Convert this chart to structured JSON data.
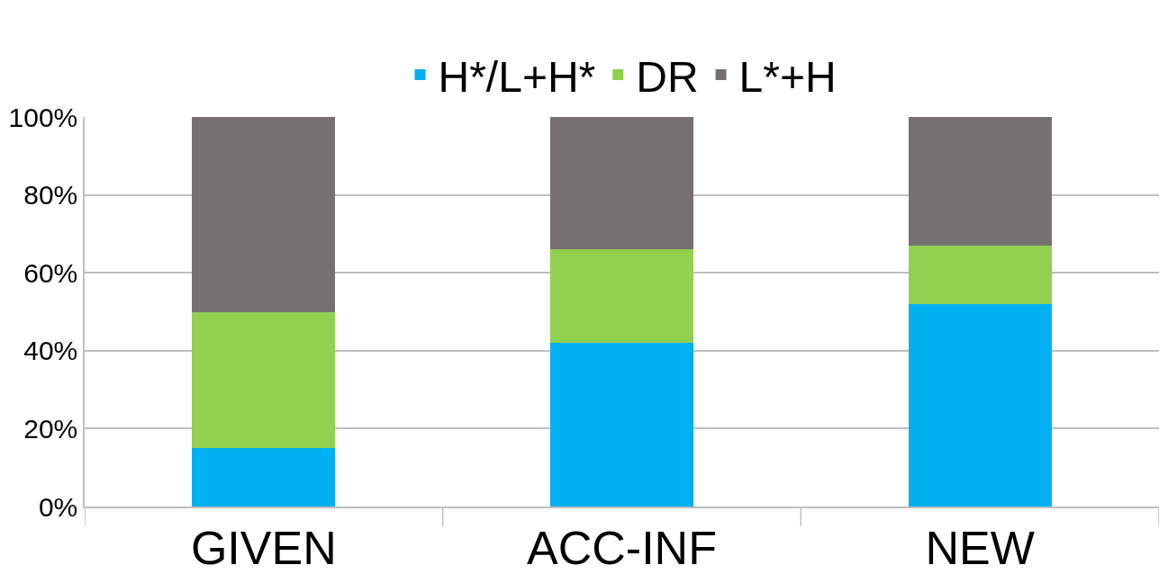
{
  "chart_data": {
    "type": "bar",
    "stacked": true,
    "categories": [
      "GIVEN",
      "ACC-INF",
      "NEW"
    ],
    "series": [
      {
        "name": "H*/L+H*",
        "color": "#00b0f0",
        "values": [
          15,
          42,
          52
        ]
      },
      {
        "name": "DR",
        "color": "#92d050",
        "values": [
          35,
          24,
          15
        ]
      },
      {
        "name": "L*+H",
        "color": "#767171",
        "values": [
          50,
          34,
          33
        ]
      }
    ],
    "ylim": [
      0,
      100
    ],
    "yticks": [
      {
        "value": 0,
        "label": "0%"
      },
      {
        "value": 20,
        "label": "20%"
      },
      {
        "value": 40,
        "label": "40%"
      },
      {
        "value": 60,
        "label": "60%"
      },
      {
        "value": 80,
        "label": "80%"
      },
      {
        "value": 100,
        "label": "100%"
      }
    ],
    "grid": "y",
    "legend": "top"
  }
}
